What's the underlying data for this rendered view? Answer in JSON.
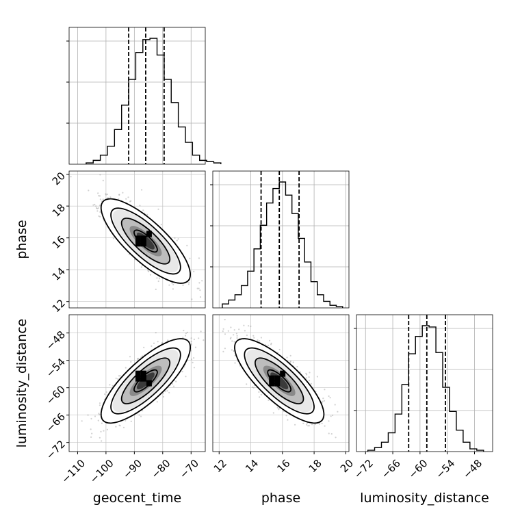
{
  "chart_data": {
    "type": "corner",
    "parameters": [
      {
        "name": "geocent_time",
        "ticks": [
          -110,
          -100,
          -90,
          -80,
          -70
        ],
        "range": [
          -113,
          -65
        ],
        "quantiles": [
          -92,
          -86,
          -79.5
        ]
      },
      {
        "name": "phase",
        "ticks": [
          12,
          14,
          16,
          18,
          20
        ],
        "range": [
          11.6,
          20.2
        ],
        "quantiles": [
          14.65,
          15.8,
          17.05
        ]
      },
      {
        "name": "luminosity_distance",
        "ticks": [
          -72,
          -66,
          -60,
          -54,
          -48
        ],
        "range": [
          -74,
          -44
        ],
        "quantiles": [
          -62.5,
          -58.5,
          -54.4
        ]
      }
    ],
    "histograms": [
      {
        "edges_start": -107,
        "bin_width": 2.5,
        "counts": [
          1,
          3,
          7,
          14,
          27,
          46,
          66,
          87,
          97,
          98,
          85,
          66,
          48,
          29,
          17,
          7,
          3,
          2,
          1
        ]
      },
      {
        "edges_start": 12.2,
        "bin_width": 0.4,
        "counts": [
          3,
          6,
          10,
          17,
          28,
          45,
          63,
          80,
          91,
          96,
          86,
          72,
          53,
          35,
          20,
          10,
          5,
          2,
          1
        ]
      },
      {
        "edges_start": -71.5,
        "bin_width": 1.5,
        "counts": [
          1,
          3,
          7,
          14,
          28,
          50,
          73,
          86,
          94,
          93,
          74,
          48,
          30,
          16,
          7,
          2,
          1
        ]
      }
    ],
    "contours": [
      {
        "x": "geocent_time",
        "y": "phase",
        "center": [
          -86,
          15.8
        ],
        "corr": -0.82
      },
      {
        "x": "geocent_time",
        "y": "luminosity_distance",
        "center": [
          -86,
          -58.5
        ],
        "corr": 0.82
      },
      {
        "x": "phase",
        "y": "luminosity_distance",
        "center": [
          15.8,
          -58.5
        ],
        "corr": -0.82
      }
    ],
    "title": "",
    "grid": true,
    "legend": "none"
  }
}
